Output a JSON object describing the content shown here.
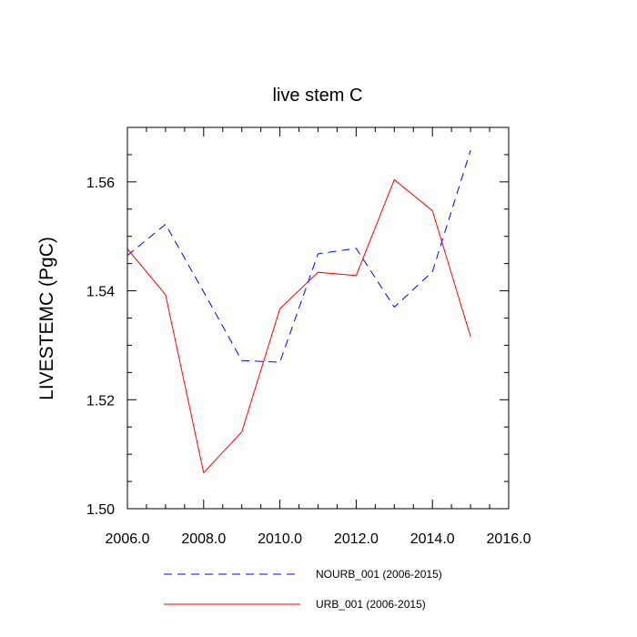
{
  "chart_data": {
    "type": "line",
    "title": "live stem C",
    "xlabel": "",
    "ylabel": "LIVESTEMC  (PgC)",
    "xlim": [
      2006,
      2016
    ],
    "ylim": [
      1.5,
      1.57
    ],
    "x_ticks": [
      2006,
      2008,
      2010,
      2012,
      2014,
      2016
    ],
    "x_tick_labels": [
      "2006.0",
      "2008.0",
      "2010.0",
      "2012.0",
      "2014.0",
      "2016.0"
    ],
    "y_ticks": [
      1.5,
      1.52,
      1.54,
      1.56
    ],
    "y_tick_labels": [
      "1.50",
      "1.52",
      "1.54",
      "1.56"
    ],
    "x": [
      2006,
      2007,
      2008,
      2009,
      2010,
      2011,
      2012,
      2013,
      2014,
      2015
    ],
    "series": [
      {
        "name": "NOURB_001 (2006-2015)",
        "color": "#0000ff",
        "style": "dashed",
        "values": [
          1.5465,
          1.5522,
          1.5398,
          1.5272,
          1.5269,
          1.5468,
          1.5478,
          1.537,
          1.5435,
          1.5658
        ]
      },
      {
        "name": "URB_001 (2006-2015)",
        "color": "#ff0000",
        "style": "solid",
        "values": [
          1.5477,
          1.5393,
          1.5066,
          1.5141,
          1.5367,
          1.5434,
          1.5428,
          1.5604,
          1.5547,
          1.5316
        ]
      }
    ],
    "legend_position": "bottom-center",
    "grid": false
  }
}
